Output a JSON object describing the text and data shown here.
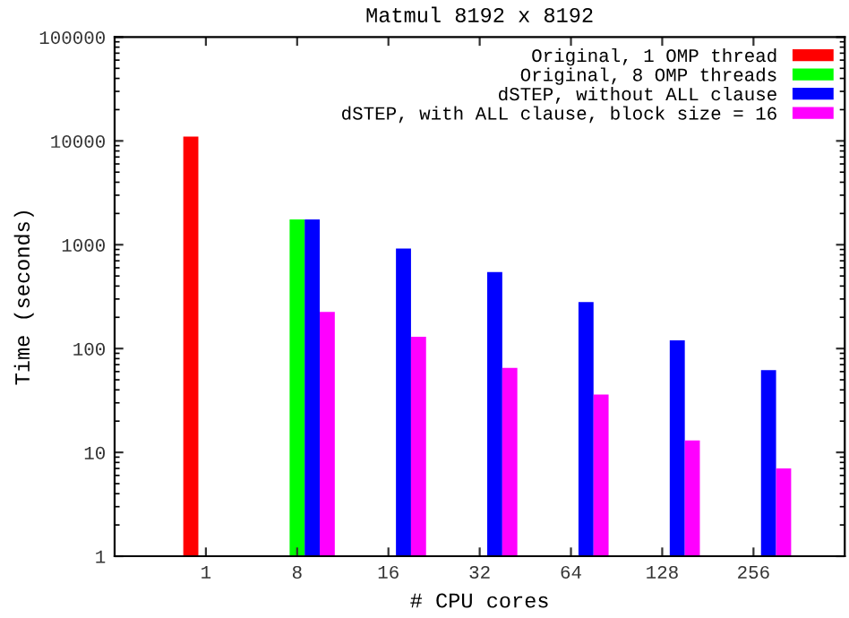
{
  "chart_data": {
    "type": "bar",
    "title": "Matmul 8192 x 8192",
    "xlabel": "# CPU cores",
    "ylabel": "Time (seconds)",
    "categories": [
      "1",
      "8",
      "16",
      "32",
      "64",
      "128",
      "256"
    ],
    "series": [
      {
        "name": "Original, 1 OMP thread",
        "color": "#ff0000",
        "values": [
          11000,
          null,
          null,
          null,
          null,
          null,
          null
        ]
      },
      {
        "name": "Original, 8 OMP threads",
        "color": "#00ff00",
        "values": [
          null,
          1750,
          null,
          null,
          null,
          null,
          null
        ]
      },
      {
        "name": "dSTEP, without ALL clause",
        "color": "#0000ff",
        "values": [
          null,
          1750,
          920,
          545,
          280,
          120,
          62
        ]
      },
      {
        "name": "dSTEP, with ALL clause, block size = 16",
        "color": "#ff00ff",
        "values": [
          null,
          225,
          130,
          65,
          36,
          13,
          7
        ]
      }
    ],
    "log": "y",
    "ylim": [
      1,
      100000
    ],
    "yticks": [
      1,
      10,
      100,
      1000,
      10000,
      100000
    ],
    "grid": false,
    "legend": "top right"
  }
}
